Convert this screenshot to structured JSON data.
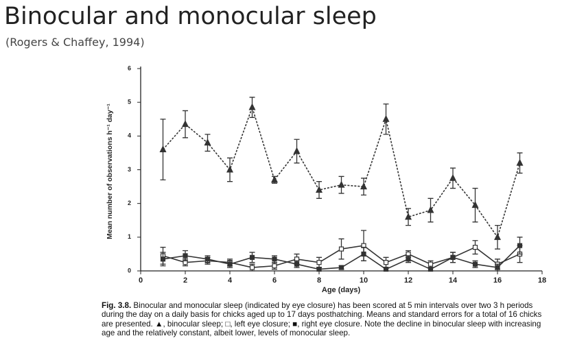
{
  "slide": {
    "title": "Binocular and monocular sleep",
    "subtitle": "(Rogers & Chaffey, 1994)"
  },
  "chart_data": {
    "type": "line",
    "y_label": "Mean number of observations h⁻¹ day⁻¹",
    "x_label": "Age (days)",
    "x": [
      1,
      2,
      3,
      4,
      5,
      6,
      7,
      8,
      9,
      10,
      11,
      12,
      13,
      14,
      15,
      16,
      17
    ],
    "series": [
      {
        "color": "#333333",
        "marker": "triangle",
        "line_style": "dashed",
        "values": [
          3.6,
          4.35,
          3.8,
          3.0,
          4.85,
          2.7,
          3.55,
          2.4,
          2.55,
          2.5,
          4.5,
          1.6,
          1.8,
          2.75,
          1.95,
          1.0,
          3.2
        ],
        "errors": [
          0.9,
          0.4,
          0.25,
          0.35,
          0.3,
          0.1,
          0.35,
          0.25,
          0.25,
          0.25,
          0.45,
          0.25,
          0.35,
          0.3,
          0.5,
          0.35,
          0.3
        ]
      },
      {
        "color": "#333333",
        "marker": "open-square",
        "line_style": "solid",
        "values": [
          0.45,
          0.25,
          0.3,
          0.25,
          0.1,
          0.15,
          0.35,
          0.25,
          0.65,
          0.75,
          0.25,
          0.5,
          0.2,
          0.4,
          0.7,
          0.2,
          0.5
        ],
        "errors": [
          0.25,
          0.1,
          0.1,
          0.1,
          0.1,
          0.1,
          0.15,
          0.15,
          0.3,
          0.45,
          0.15,
          0.1,
          0.1,
          0.15,
          0.2,
          0.15,
          0.25
        ]
      },
      {
        "color": "#333333",
        "marker": "filled-square",
        "line_style": "solid",
        "values": [
          0.35,
          0.45,
          0.35,
          0.2,
          0.4,
          0.35,
          0.2,
          0.05,
          0.1,
          0.5,
          0.05,
          0.35,
          0.05,
          0.4,
          0.2,
          0.1,
          0.75
        ],
        "errors": [
          0.2,
          0.15,
          0.1,
          0.1,
          0.15,
          0.1,
          0.1,
          0.05,
          0.05,
          0.2,
          0.05,
          0.1,
          0.05,
          0.15,
          0.1,
          0.1,
          0.25
        ]
      }
    ],
    "xlim": [
      0,
      18
    ],
    "xticks": [
      0,
      2,
      4,
      6,
      8,
      10,
      12,
      14,
      16,
      18
    ],
    "ylim": [
      0,
      6
    ],
    "yticks": [
      0,
      1,
      2,
      3,
      4,
      5,
      6
    ],
    "grid": false
  },
  "caption": {
    "label": "Fig. 3.8.",
    "text": "Binocular and monocular sleep (indicated by eye closure) has been scored at 5 min intervals over two 3 h periods during the day on a daily basis for chicks aged up to 17 days posthatching. Means and standard errors for a total of 16 chicks are presented. ▲, binocular sleep; □, left eye closure; ■, right eye closure. Note the decline in binocular sleep with increasing age and the relatively constant, albeit lower, levels of monocular sleep."
  }
}
